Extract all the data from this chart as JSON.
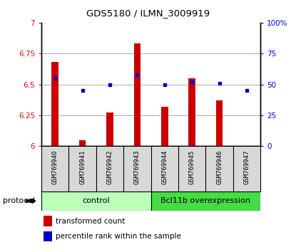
{
  "title": "GDS5180 / ILMN_3009919",
  "samples": [
    "GSM769940",
    "GSM769941",
    "GSM769942",
    "GSM769943",
    "GSM769944",
    "GSM769945",
    "GSM769946",
    "GSM769947"
  ],
  "transformed_counts": [
    6.68,
    6.05,
    6.27,
    6.83,
    6.32,
    6.55,
    6.37,
    6.0
  ],
  "percentile_ranks": [
    55,
    45,
    50,
    58,
    50,
    52,
    51,
    45
  ],
  "ylim_left": [
    6.0,
    7.0
  ],
  "ylim_right": [
    0,
    100
  ],
  "yticks_left": [
    6.0,
    6.25,
    6.5,
    6.75,
    7.0
  ],
  "yticks_right": [
    0,
    25,
    50,
    75,
    100
  ],
  "bar_color": "#cc0000",
  "dot_color": "#0000cc",
  "bar_bottom": 6.0,
  "control_color": "#bbffbb",
  "overexpr_color": "#44dd44",
  "control_label": "control",
  "overexpr_label": "Bcl11b overexpression",
  "protocol_label": "protocol",
  "legend_bar": "transformed count",
  "legend_dot": "percentile rank within the sample",
  "bg_color": "#d8d8d8",
  "bar_width": 0.25
}
